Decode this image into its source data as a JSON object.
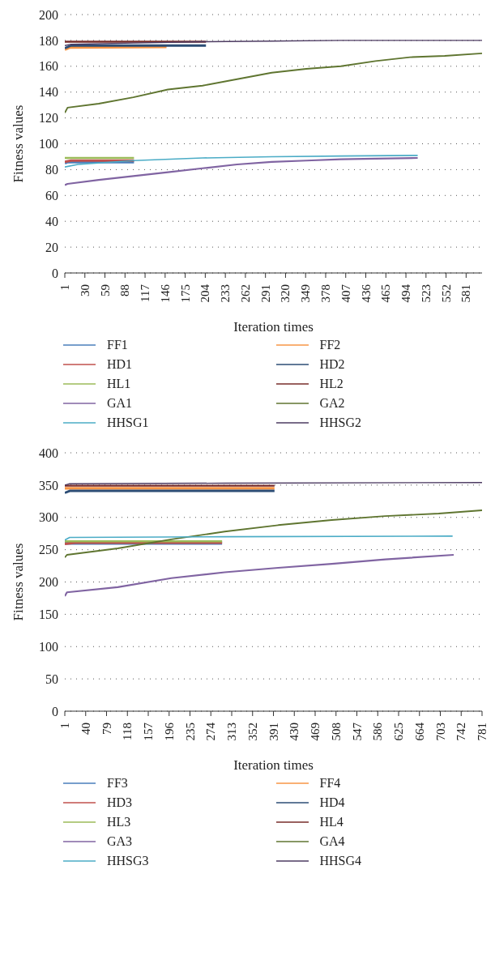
{
  "chart_data": [
    {
      "type": "line",
      "xlabel": "Iteration times",
      "ylabel": "Fitness values",
      "xlim": [
        1,
        604
      ],
      "xticks": [
        1,
        30,
        59,
        88,
        117,
        146,
        175,
        204,
        233,
        262,
        291,
        320,
        349,
        378,
        407,
        436,
        465,
        494,
        523,
        552,
        581
      ],
      "ylim": [
        0,
        200
      ],
      "yticks": [
        0,
        20,
        40,
        60,
        80,
        100,
        120,
        140,
        160,
        180,
        200
      ],
      "grid": "y",
      "legend": "bottom",
      "marker": "none",
      "line_style": "solid",
      "series": [
        {
          "name": "FF1",
          "color": "#4a7ebb",
          "x": [
            1,
            5,
            101
          ],
          "values": [
            85,
            86,
            86
          ]
        },
        {
          "name": "FF2",
          "color": "#f79646",
          "x": [
            1,
            8,
            148
          ],
          "values": [
            173,
            174.5,
            175
          ]
        },
        {
          "name": "HD1",
          "color": "#c0504d",
          "x": [
            1,
            10,
            101
          ],
          "values": [
            86,
            87,
            87
          ]
        },
        {
          "name": "HD2",
          "color": "#2c4d75",
          "x": [
            1,
            10,
            205
          ],
          "values": [
            174,
            176,
            176
          ]
        },
        {
          "name": "HL1",
          "color": "#9bbb59",
          "x": [
            1,
            101
          ],
          "values": [
            89,
            89
          ]
        },
        {
          "name": "HL2",
          "color": "#772c2a",
          "x": [
            1,
            205
          ],
          "values": [
            179,
            179
          ]
        },
        {
          "name": "GA1",
          "color": "#8064a2",
          "x": [
            1,
            5,
            50,
            100,
            150,
            200,
            250,
            300,
            350,
            400,
            450,
            511
          ],
          "values": [
            68,
            69,
            72,
            75,
            78,
            81,
            84,
            86,
            87,
            88,
            88.5,
            89
          ]
        },
        {
          "name": "GA2",
          "color": "#5f7530",
          "x": [
            1,
            5,
            50,
            100,
            150,
            200,
            250,
            300,
            350,
            400,
            450,
            500,
            550,
            604
          ],
          "values": [
            124,
            128,
            131,
            136,
            142,
            145,
            150,
            155,
            158,
            160,
            164,
            167,
            168,
            170
          ]
        },
        {
          "name": "HHSG1",
          "color": "#4bacc6",
          "x": [
            1,
            20,
            100,
            200,
            300,
            400,
            511
          ],
          "values": [
            82,
            84,
            87,
            89,
            90,
            90.5,
            91
          ]
        },
        {
          "name": "HHSG2",
          "color": "#4d3b62",
          "x": [
            1,
            10,
            100,
            200,
            300,
            400,
            500,
            604
          ],
          "values": [
            176,
            177,
            178,
            179,
            179.5,
            180,
            180,
            180
          ]
        }
      ]
    },
    {
      "type": "line",
      "xlabel": "Iteration times",
      "ylabel": "Fitness values",
      "xlim": [
        1,
        781
      ],
      "xticks": [
        1,
        40,
        79,
        118,
        157,
        196,
        235,
        274,
        313,
        352,
        391,
        430,
        469,
        508,
        547,
        586,
        625,
        664,
        703,
        742,
        781
      ],
      "ylim": [
        0,
        400
      ],
      "yticks": [
        0,
        50,
        100,
        150,
        200,
        250,
        300,
        350,
        400
      ],
      "grid": "y",
      "legend": "bottom",
      "marker": "none",
      "line_style": "solid",
      "series": [
        {
          "name": "FF3",
          "color": "#4a7ebb",
          "x": [
            1,
            295
          ],
          "values": [
            260,
            260
          ]
        },
        {
          "name": "FF4",
          "color": "#f79646",
          "x": [
            1,
            393
          ],
          "values": [
            345,
            345
          ]
        },
        {
          "name": "HD3",
          "color": "#c0504d",
          "x": [
            1,
            20,
            295
          ],
          "values": [
            259,
            261,
            261
          ]
        },
        {
          "name": "HD4",
          "color": "#2c4d75",
          "x": [
            1,
            10,
            393
          ],
          "values": [
            338,
            341,
            341
          ]
        },
        {
          "name": "HL3",
          "color": "#9bbb59",
          "x": [
            1,
            295
          ],
          "values": [
            263,
            263
          ]
        },
        {
          "name": "HL4",
          "color": "#772c2a",
          "x": [
            1,
            393
          ],
          "values": [
            349,
            349
          ]
        },
        {
          "name": "GA3",
          "color": "#8064a2",
          "x": [
            1,
            5,
            100,
            200,
            300,
            400,
            500,
            600,
            728
          ],
          "values": [
            178,
            184,
            192,
            206,
            215,
            222,
            228,
            235,
            242
          ]
        },
        {
          "name": "GA4",
          "color": "#5f7530",
          "x": [
            1,
            5,
            100,
            200,
            300,
            400,
            500,
            600,
            700,
            781
          ],
          "values": [
            238,
            242,
            252,
            266,
            278,
            288,
            296,
            302,
            306,
            311
          ]
        },
        {
          "name": "HHSG3",
          "color": "#4bacc6",
          "x": [
            1,
            10,
            300,
            726
          ],
          "values": [
            265,
            269,
            270,
            271
          ]
        },
        {
          "name": "HHSG4",
          "color": "#4d3b62",
          "x": [
            1,
            10,
            300,
            781
          ],
          "values": [
            350,
            352,
            353,
            354
          ]
        }
      ]
    }
  ]
}
